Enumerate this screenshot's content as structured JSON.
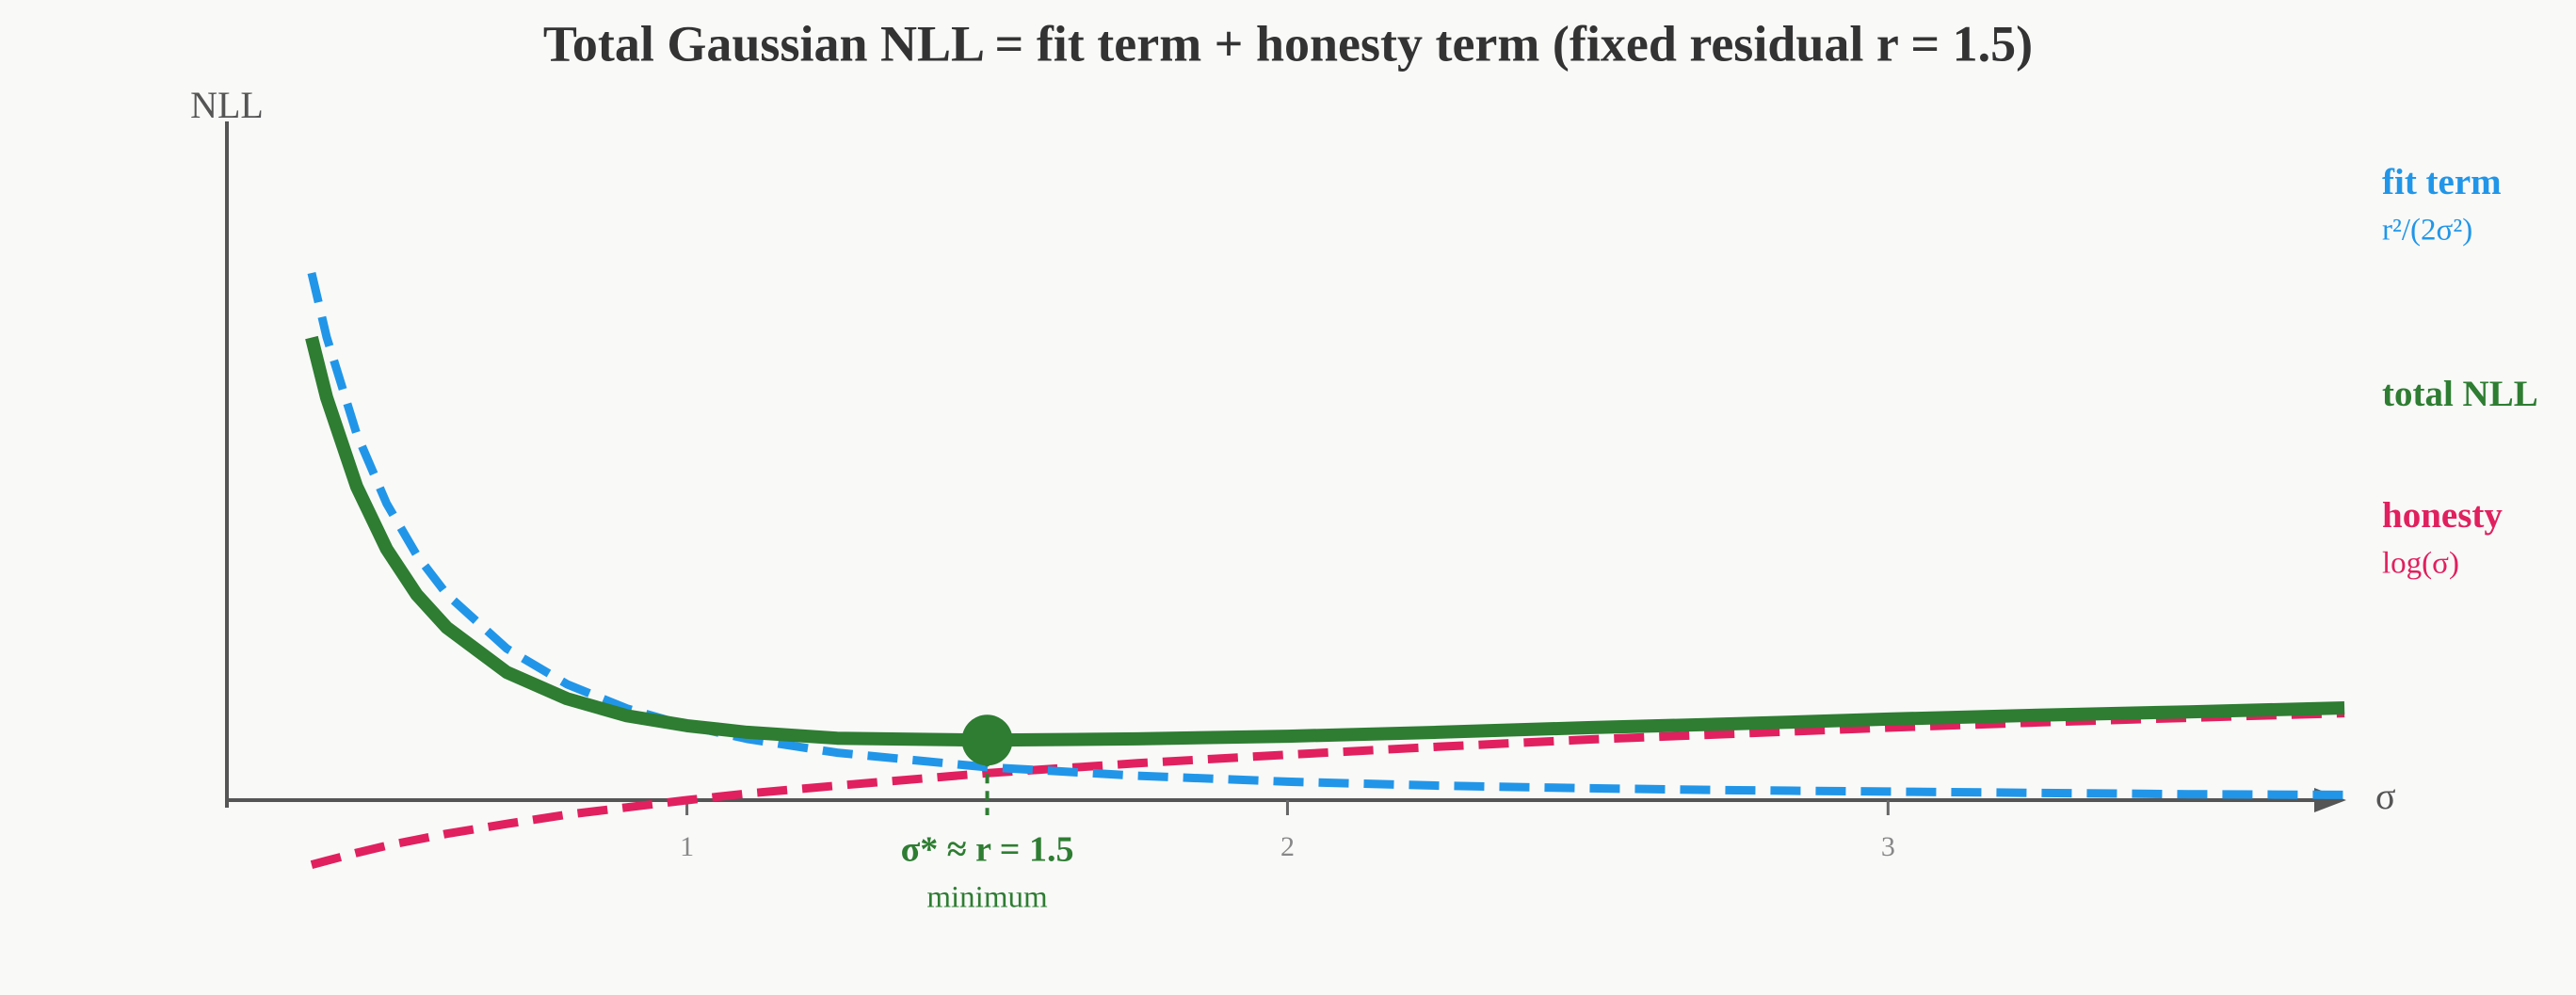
{
  "chart_data": {
    "type": "line",
    "title": "Total Gaussian NLL = fit term + honesty term (fixed residual r = 1.5)",
    "x_label": "σ",
    "y_label": "NLL",
    "x": [
      0.375,
      0.4,
      0.45,
      0.5,
      0.55,
      0.6,
      0.7,
      0.8,
      0.9,
      1.0,
      1.1,
      1.25,
      1.5,
      1.75,
      2.0,
      2.25,
      2.5,
      2.75,
      3.0,
      3.25,
      3.5,
      3.76
    ],
    "series": [
      {
        "name": "fit term",
        "formula": "r²/(2σ²)",
        "color": "#2196e8",
        "style": "dashed",
        "values": [
          8.0,
          7.03,
          5.56,
          4.5,
          3.72,
          3.125,
          2.3,
          1.76,
          1.39,
          1.13,
          0.93,
          0.72,
          0.5,
          0.37,
          0.28,
          0.22,
          0.18,
          0.15,
          0.13,
          0.11,
          0.09,
          0.08
        ]
      },
      {
        "name": "total NLL",
        "color": "#2e7d32",
        "style": "solid",
        "values": [
          7.02,
          6.11,
          4.76,
          3.81,
          3.12,
          2.62,
          1.94,
          1.54,
          1.28,
          1.13,
          1.03,
          0.94,
          0.91,
          0.93,
          0.97,
          1.03,
          1.1,
          1.16,
          1.23,
          1.29,
          1.34,
          1.4
        ]
      },
      {
        "name": "honesty",
        "formula": "log(σ)",
        "color": "#e0205f",
        "style": "dashed",
        "values": [
          -0.98,
          -0.92,
          -0.8,
          -0.69,
          -0.6,
          -0.51,
          -0.36,
          -0.22,
          -0.11,
          0,
          0.1,
          0.22,
          0.41,
          0.56,
          0.69,
          0.81,
          0.92,
          1.01,
          1.1,
          1.18,
          1.25,
          1.32
        ]
      }
    ],
    "marker": {
      "x": 1.5,
      "y": 0.91,
      "label": "σ* ≈ r = 1.5",
      "sublabel": "minimum",
      "color": "#2e7d32"
    },
    "xlim": [
      0.234,
      3.763
    ],
    "xticks": [
      1,
      2,
      3
    ],
    "ylim": [
      -1.5,
      10.3
    ]
  }
}
